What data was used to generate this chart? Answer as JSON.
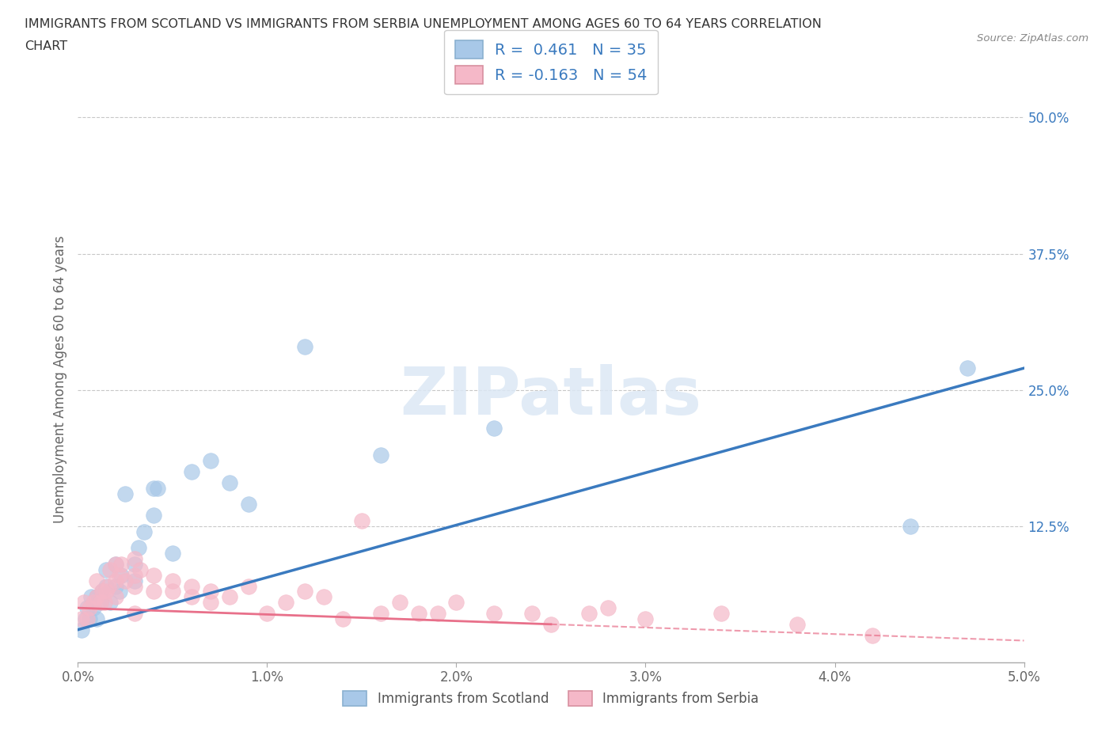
{
  "title_line1": "IMMIGRANTS FROM SCOTLAND VS IMMIGRANTS FROM SERBIA UNEMPLOYMENT AMONG AGES 60 TO 64 YEARS CORRELATION",
  "title_line2": "CHART",
  "source": "Source: ZipAtlas.com",
  "ylabel": "Unemployment Among Ages 60 to 64 years",
  "xlim": [
    0.0,
    0.05
  ],
  "ylim": [
    0.0,
    0.52
  ],
  "xticks": [
    0.0,
    0.01,
    0.02,
    0.03,
    0.04,
    0.05
  ],
  "xtick_labels": [
    "0.0%",
    "1.0%",
    "2.0%",
    "3.0%",
    "4.0%",
    "5.0%"
  ],
  "yticks": [
    0.0,
    0.125,
    0.25,
    0.375,
    0.5
  ],
  "ytick_labels": [
    "",
    "12.5%",
    "25.0%",
    "37.5%",
    "50.0%"
  ],
  "scotland_R": 0.461,
  "scotland_N": 35,
  "serbia_R": -0.163,
  "serbia_N": 54,
  "scotland_color": "#a8c8e8",
  "serbia_color": "#f5b8c8",
  "scotland_line_color": "#3a7abf",
  "serbia_line_color": "#e8708a",
  "background_color": "#ffffff",
  "grid_color": "#c8c8c8",
  "watermark": "ZIPatlas",
  "scotland_x": [
    0.0002,
    0.0004,
    0.0005,
    0.0006,
    0.0007,
    0.0008,
    0.001,
    0.001,
    0.0012,
    0.0013,
    0.0015,
    0.0015,
    0.0017,
    0.002,
    0.002,
    0.0022,
    0.0023,
    0.0025,
    0.003,
    0.003,
    0.0032,
    0.0035,
    0.004,
    0.004,
    0.0042,
    0.005,
    0.006,
    0.007,
    0.008,
    0.009,
    0.012,
    0.016,
    0.022,
    0.044,
    0.047
  ],
  "scotland_y": [
    0.03,
    0.04,
    0.05,
    0.04,
    0.06,
    0.05,
    0.04,
    0.06,
    0.055,
    0.065,
    0.07,
    0.085,
    0.055,
    0.07,
    0.09,
    0.065,
    0.08,
    0.155,
    0.075,
    0.09,
    0.105,
    0.12,
    0.135,
    0.16,
    0.16,
    0.1,
    0.175,
    0.185,
    0.165,
    0.145,
    0.29,
    0.19,
    0.215,
    0.125,
    0.27
  ],
  "serbia_x": [
    0.0002,
    0.0003,
    0.0005,
    0.0006,
    0.0008,
    0.001,
    0.001,
    0.0012,
    0.0013,
    0.0014,
    0.0015,
    0.0016,
    0.0017,
    0.002,
    0.002,
    0.002,
    0.0022,
    0.0023,
    0.0025,
    0.003,
    0.003,
    0.003,
    0.003,
    0.0033,
    0.004,
    0.004,
    0.005,
    0.005,
    0.006,
    0.006,
    0.007,
    0.007,
    0.008,
    0.009,
    0.01,
    0.011,
    0.012,
    0.013,
    0.014,
    0.015,
    0.016,
    0.017,
    0.018,
    0.019,
    0.02,
    0.022,
    0.024,
    0.025,
    0.027,
    0.028,
    0.03,
    0.034,
    0.038,
    0.042
  ],
  "serbia_y": [
    0.04,
    0.055,
    0.04,
    0.05,
    0.055,
    0.06,
    0.075,
    0.055,
    0.065,
    0.055,
    0.065,
    0.07,
    0.085,
    0.06,
    0.075,
    0.09,
    0.08,
    0.09,
    0.075,
    0.045,
    0.07,
    0.08,
    0.095,
    0.085,
    0.065,
    0.08,
    0.065,
    0.075,
    0.06,
    0.07,
    0.055,
    0.065,
    0.06,
    0.07,
    0.045,
    0.055,
    0.065,
    0.06,
    0.04,
    0.13,
    0.045,
    0.055,
    0.045,
    0.045,
    0.055,
    0.045,
    0.045,
    0.035,
    0.045,
    0.05,
    0.04,
    0.045,
    0.035,
    0.025
  ],
  "scotland_line_x0": 0.0,
  "scotland_line_y0": 0.03,
  "scotland_line_x1": 0.05,
  "scotland_line_y1": 0.27,
  "serbia_line_solid_x0": 0.0,
  "serbia_line_solid_y0": 0.05,
  "serbia_line_solid_x1": 0.025,
  "serbia_line_solid_y1": 0.035,
  "serbia_line_dash_x0": 0.025,
  "serbia_line_dash_y0": 0.035,
  "serbia_line_dash_x1": 0.05,
  "serbia_line_dash_y1": 0.02
}
